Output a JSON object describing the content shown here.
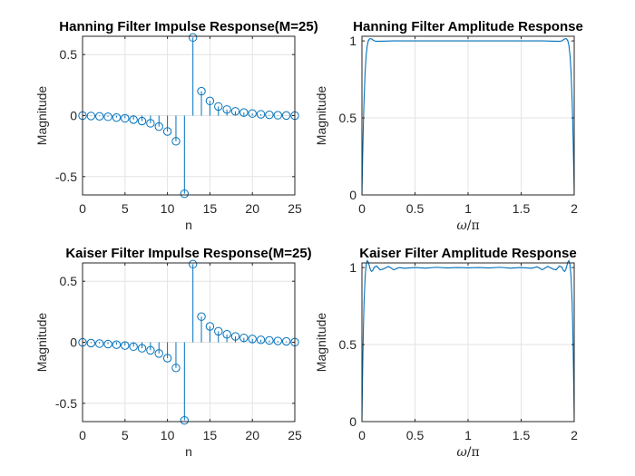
{
  "chart_data": [
    {
      "type": "stem",
      "title": "Hanning Filter Impulse Response(M=25)",
      "xlabel": "n",
      "ylabel": "Magnitude",
      "xlim": [
        0,
        25
      ],
      "ylim": [
        -0.65,
        0.65
      ],
      "xticks": [
        0,
        5,
        10,
        15,
        20,
        25
      ],
      "yticks": [
        -0.5,
        0,
        0.5
      ],
      "yticklabels": [
        "-0.5",
        "0",
        "0.5"
      ],
      "grid": true,
      "x": [
        0,
        1,
        2,
        3,
        4,
        5,
        6,
        7,
        8,
        9,
        10,
        11,
        12,
        13,
        14,
        15,
        16,
        17,
        18,
        19,
        20,
        21,
        22,
        23,
        24,
        25
      ],
      "values": [
        0,
        -0.003,
        -0.006,
        -0.01,
        -0.016,
        -0.022,
        -0.033,
        -0.045,
        -0.063,
        -0.09,
        -0.13,
        -0.21,
        -0.64,
        0.64,
        0.2,
        0.12,
        0.075,
        0.05,
        0.035,
        0.025,
        0.017,
        0.011,
        0.006,
        0.003,
        0.001,
        0
      ],
      "color": "#0072BD"
    },
    {
      "type": "line",
      "title": "Hanning Filter Amplitude Response",
      "xlabel_sym": "ω",
      "xlabel_rest": "/π",
      "ylabel": "Magnitude",
      "xlim": [
        0,
        2
      ],
      "ylim": [
        0,
        1.03
      ],
      "xticks": [
        0,
        0.5,
        1,
        1.5,
        2
      ],
      "xticklabels": [
        "0",
        "0.5",
        "1",
        "1.5",
        "2"
      ],
      "yticks": [
        0,
        0.5,
        1
      ],
      "yticklabels": [
        "0",
        "0.5",
        "1"
      ],
      "grid": true,
      "x": [
        0,
        0.005,
        0.01,
        0.015,
        0.02,
        0.03,
        0.04,
        0.05,
        0.06,
        0.07,
        0.08,
        0.09,
        0.1,
        0.11,
        0.12,
        0.13,
        0.15,
        0.2,
        0.3,
        0.5,
        0.7,
        1.0,
        1.3,
        1.5,
        1.7,
        1.8,
        1.85,
        1.87,
        1.88,
        1.89,
        1.9,
        1.91,
        1.92,
        1.93,
        1.94,
        1.95,
        1.96,
        1.97,
        1.98,
        1.985,
        1.99,
        1.995,
        2.0
      ],
      "values": [
        0,
        0.18,
        0.35,
        0.5,
        0.62,
        0.8,
        0.91,
        0.97,
        1.0,
        1.012,
        1.015,
        1.013,
        1.008,
        1.004,
        1.0,
        0.998,
        0.997,
        0.998,
        1.0,
        1.0,
        1.0,
        1.0,
        1.0,
        1.0,
        1.0,
        0.998,
        0.997,
        0.998,
        1.0,
        1.004,
        1.008,
        1.013,
        1.015,
        1.012,
        1.0,
        0.97,
        0.91,
        0.8,
        0.62,
        0.5,
        0.35,
        0.18,
        0
      ],
      "color": "#0072BD"
    },
    {
      "type": "stem",
      "title": "Kaiser Filter Impulse Response(M=25)",
      "xlabel": "n",
      "ylabel": "Magnitude",
      "xlim": [
        0,
        25
      ],
      "ylim": [
        -0.65,
        0.65
      ],
      "xticks": [
        0,
        5,
        10,
        15,
        20,
        25
      ],
      "yticks": [
        -0.5,
        0,
        0.5
      ],
      "yticklabels": [
        "-0.5",
        "0",
        "0.5"
      ],
      "grid": true,
      "x": [
        0,
        1,
        2,
        3,
        4,
        5,
        6,
        7,
        8,
        9,
        10,
        11,
        12,
        13,
        14,
        15,
        16,
        17,
        18,
        19,
        20,
        21,
        22,
        23,
        24,
        25
      ],
      "values": [
        -0.001,
        -0.007,
        -0.011,
        -0.015,
        -0.02,
        -0.027,
        -0.036,
        -0.049,
        -0.066,
        -0.092,
        -0.13,
        -0.21,
        -0.64,
        0.64,
        0.21,
        0.13,
        0.09,
        0.065,
        0.048,
        0.036,
        0.027,
        0.02,
        0.015,
        0.011,
        0.007,
        0.001
      ],
      "color": "#0072BD"
    },
    {
      "type": "line",
      "title": "Kaiser Filter Amplitude Response",
      "xlabel_sym": "ω",
      "xlabel_rest": "/π",
      "ylabel": "Magnitude",
      "xlim": [
        0,
        2
      ],
      "ylim": [
        0,
        1.03
      ],
      "xticks": [
        0,
        0.5,
        1,
        1.5,
        2
      ],
      "xticklabels": [
        "0",
        "0.5",
        "1",
        "1.5",
        "2"
      ],
      "yticks": [
        0,
        0.5,
        1
      ],
      "yticklabels": [
        "0",
        "0.5",
        "1"
      ],
      "grid": true,
      "x": [
        0,
        0.005,
        0.01,
        0.015,
        0.02,
        0.03,
        0.04,
        0.05,
        0.06,
        0.07,
        0.08,
        0.09,
        0.1,
        0.12,
        0.14,
        0.17,
        0.2,
        0.25,
        0.3,
        0.35,
        0.4,
        0.5,
        0.6,
        0.7,
        0.8,
        0.9,
        1.0,
        1.1,
        1.2,
        1.3,
        1.4,
        1.5,
        1.6,
        1.65,
        1.7,
        1.75,
        1.8,
        1.83,
        1.86,
        1.88,
        1.9,
        1.91,
        1.92,
        1.93,
        1.94,
        1.95,
        1.96,
        1.97,
        1.98,
        1.985,
        1.99,
        1.995,
        2.0
      ],
      "values": [
        0,
        0.25,
        0.47,
        0.64,
        0.78,
        0.94,
        1.02,
        1.045,
        1.035,
        1.01,
        0.985,
        0.975,
        0.98,
        1.005,
        1.01,
        0.985,
        0.99,
        1.008,
        0.985,
        1.0,
        0.995,
        1.0,
        0.996,
        1.002,
        0.997,
        1.0,
        0.998,
        1.0,
        0.997,
        1.002,
        0.996,
        1.0,
        0.995,
        1.005,
        0.985,
        1.008,
        0.99,
        0.985,
        1.01,
        1.005,
        0.98,
        0.975,
        0.985,
        1.01,
        1.035,
        1.045,
        1.02,
        0.94,
        0.78,
        0.64,
        0.47,
        0.25,
        0
      ],
      "color": "#0072BD"
    }
  ]
}
